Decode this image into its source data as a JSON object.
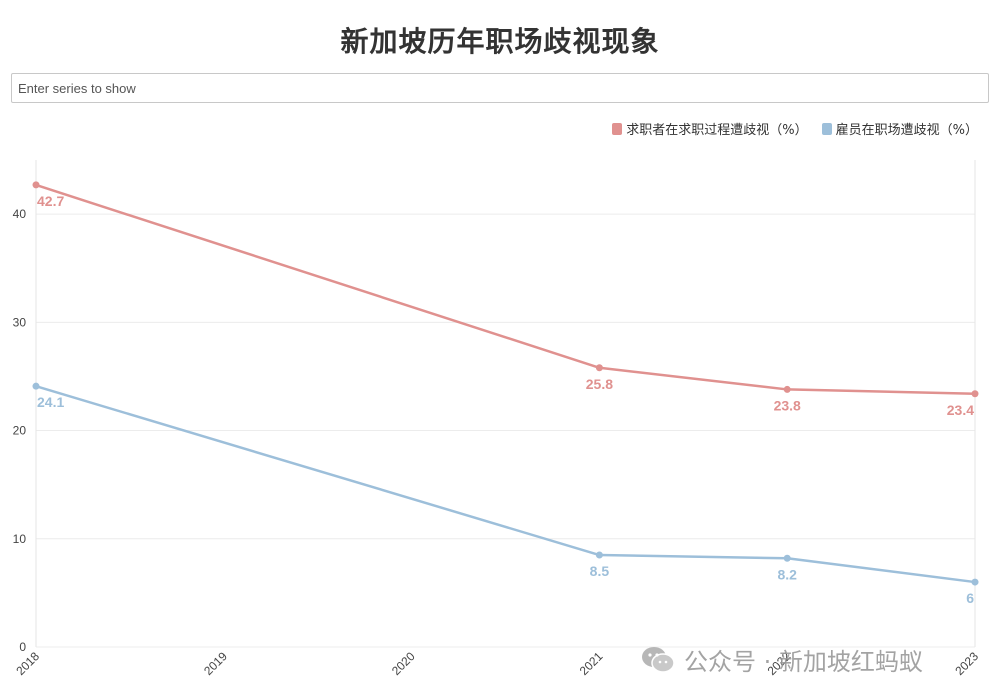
{
  "title": "新加坡历年职场歧视现象",
  "search": {
    "placeholder": "Enter series to show"
  },
  "legend": [
    {
      "name": "求职者在求职过程遭歧视（%）",
      "color": "#e0918f"
    },
    {
      "name": "雇员在职场遭歧视（%）",
      "color": "#9dbfda"
    }
  ],
  "watermark": {
    "icon": "wechat-icon",
    "text": "公众号 · 新加坡红蚂蚁"
  },
  "chart_data": {
    "type": "line",
    "title": "新加坡历年职场歧视现象",
    "xlabel": "",
    "ylabel": "",
    "x": [
      "2018",
      "2019",
      "2020",
      "2021",
      "2022",
      "2023"
    ],
    "yticks": [
      "0",
      "10",
      "20",
      "30",
      "40"
    ],
    "ylim": [
      0,
      45
    ],
    "grid": true,
    "legend_position": "top-right",
    "series": [
      {
        "name": "求职者在求职过程遭歧视（%）",
        "color": "#e0918f",
        "points": [
          {
            "x": "2018",
            "y": 42.7,
            "label": "42.7"
          },
          {
            "x": "2021",
            "y": 25.8,
            "label": "25.8"
          },
          {
            "x": "2022",
            "y": 23.8,
            "label": "23.8"
          },
          {
            "x": "2023",
            "y": 23.4,
            "label": "23.4"
          }
        ]
      },
      {
        "name": "雇员在职场遭歧视（%）",
        "color": "#9dbfda",
        "points": [
          {
            "x": "2018",
            "y": 24.1,
            "label": "24.1"
          },
          {
            "x": "2021",
            "y": 8.5,
            "label": "8.5"
          },
          {
            "x": "2022",
            "y": 8.2,
            "label": "8.2"
          },
          {
            "x": "2023",
            "y": 6,
            "label": "6"
          }
        ]
      }
    ]
  }
}
